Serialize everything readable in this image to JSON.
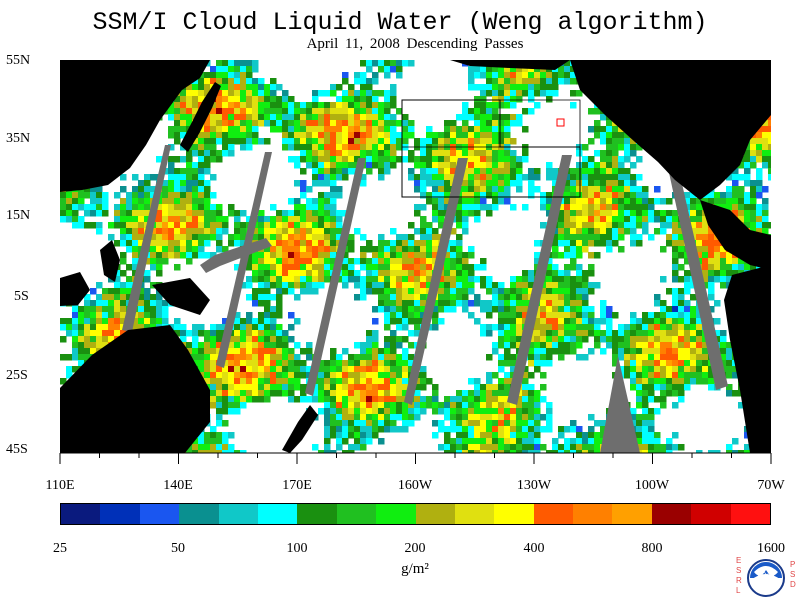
{
  "title": "SSM/I Cloud Liquid Water (Weng algorithm)",
  "subtitle": "April 11, 2008  Descending Passes",
  "latitude_labels": [
    "55N",
    "35N",
    "15N",
    "5S",
    "25S",
    "45S"
  ],
  "longitude_labels": [
    "110E",
    "140E",
    "170E",
    "160W",
    "130W",
    "100W",
    "70W"
  ],
  "colorbar": {
    "ticks": [
      "25",
      "50",
      "100",
      "200",
      "400",
      "800",
      "1600"
    ],
    "colors": [
      "#0a1a7e",
      "#0030b8",
      "#1a56f0",
      "#0a9090",
      "#10c8c8",
      "#00ffff",
      "#1a9010",
      "#20c020",
      "#10ee10",
      "#b0b010",
      "#e0e010",
      "#ffff00",
      "#ff5a00",
      "#ff8000",
      "#ffa000",
      "#9a0000",
      "#d00000",
      "#ff1010"
    ]
  },
  "units_label": "g/m²",
  "logo": {
    "left_letters": [
      "E",
      "S",
      "R",
      "L"
    ],
    "right_letters": [
      "P",
      "S",
      "D"
    ],
    "emblem": "NOAA",
    "icon": "noaa-emblem-icon"
  },
  "style_colors": {
    "land": "#000000",
    "swath_gap": "#6e6e6e",
    "box_outline": "#000000",
    "marker": "#ff0000"
  }
}
